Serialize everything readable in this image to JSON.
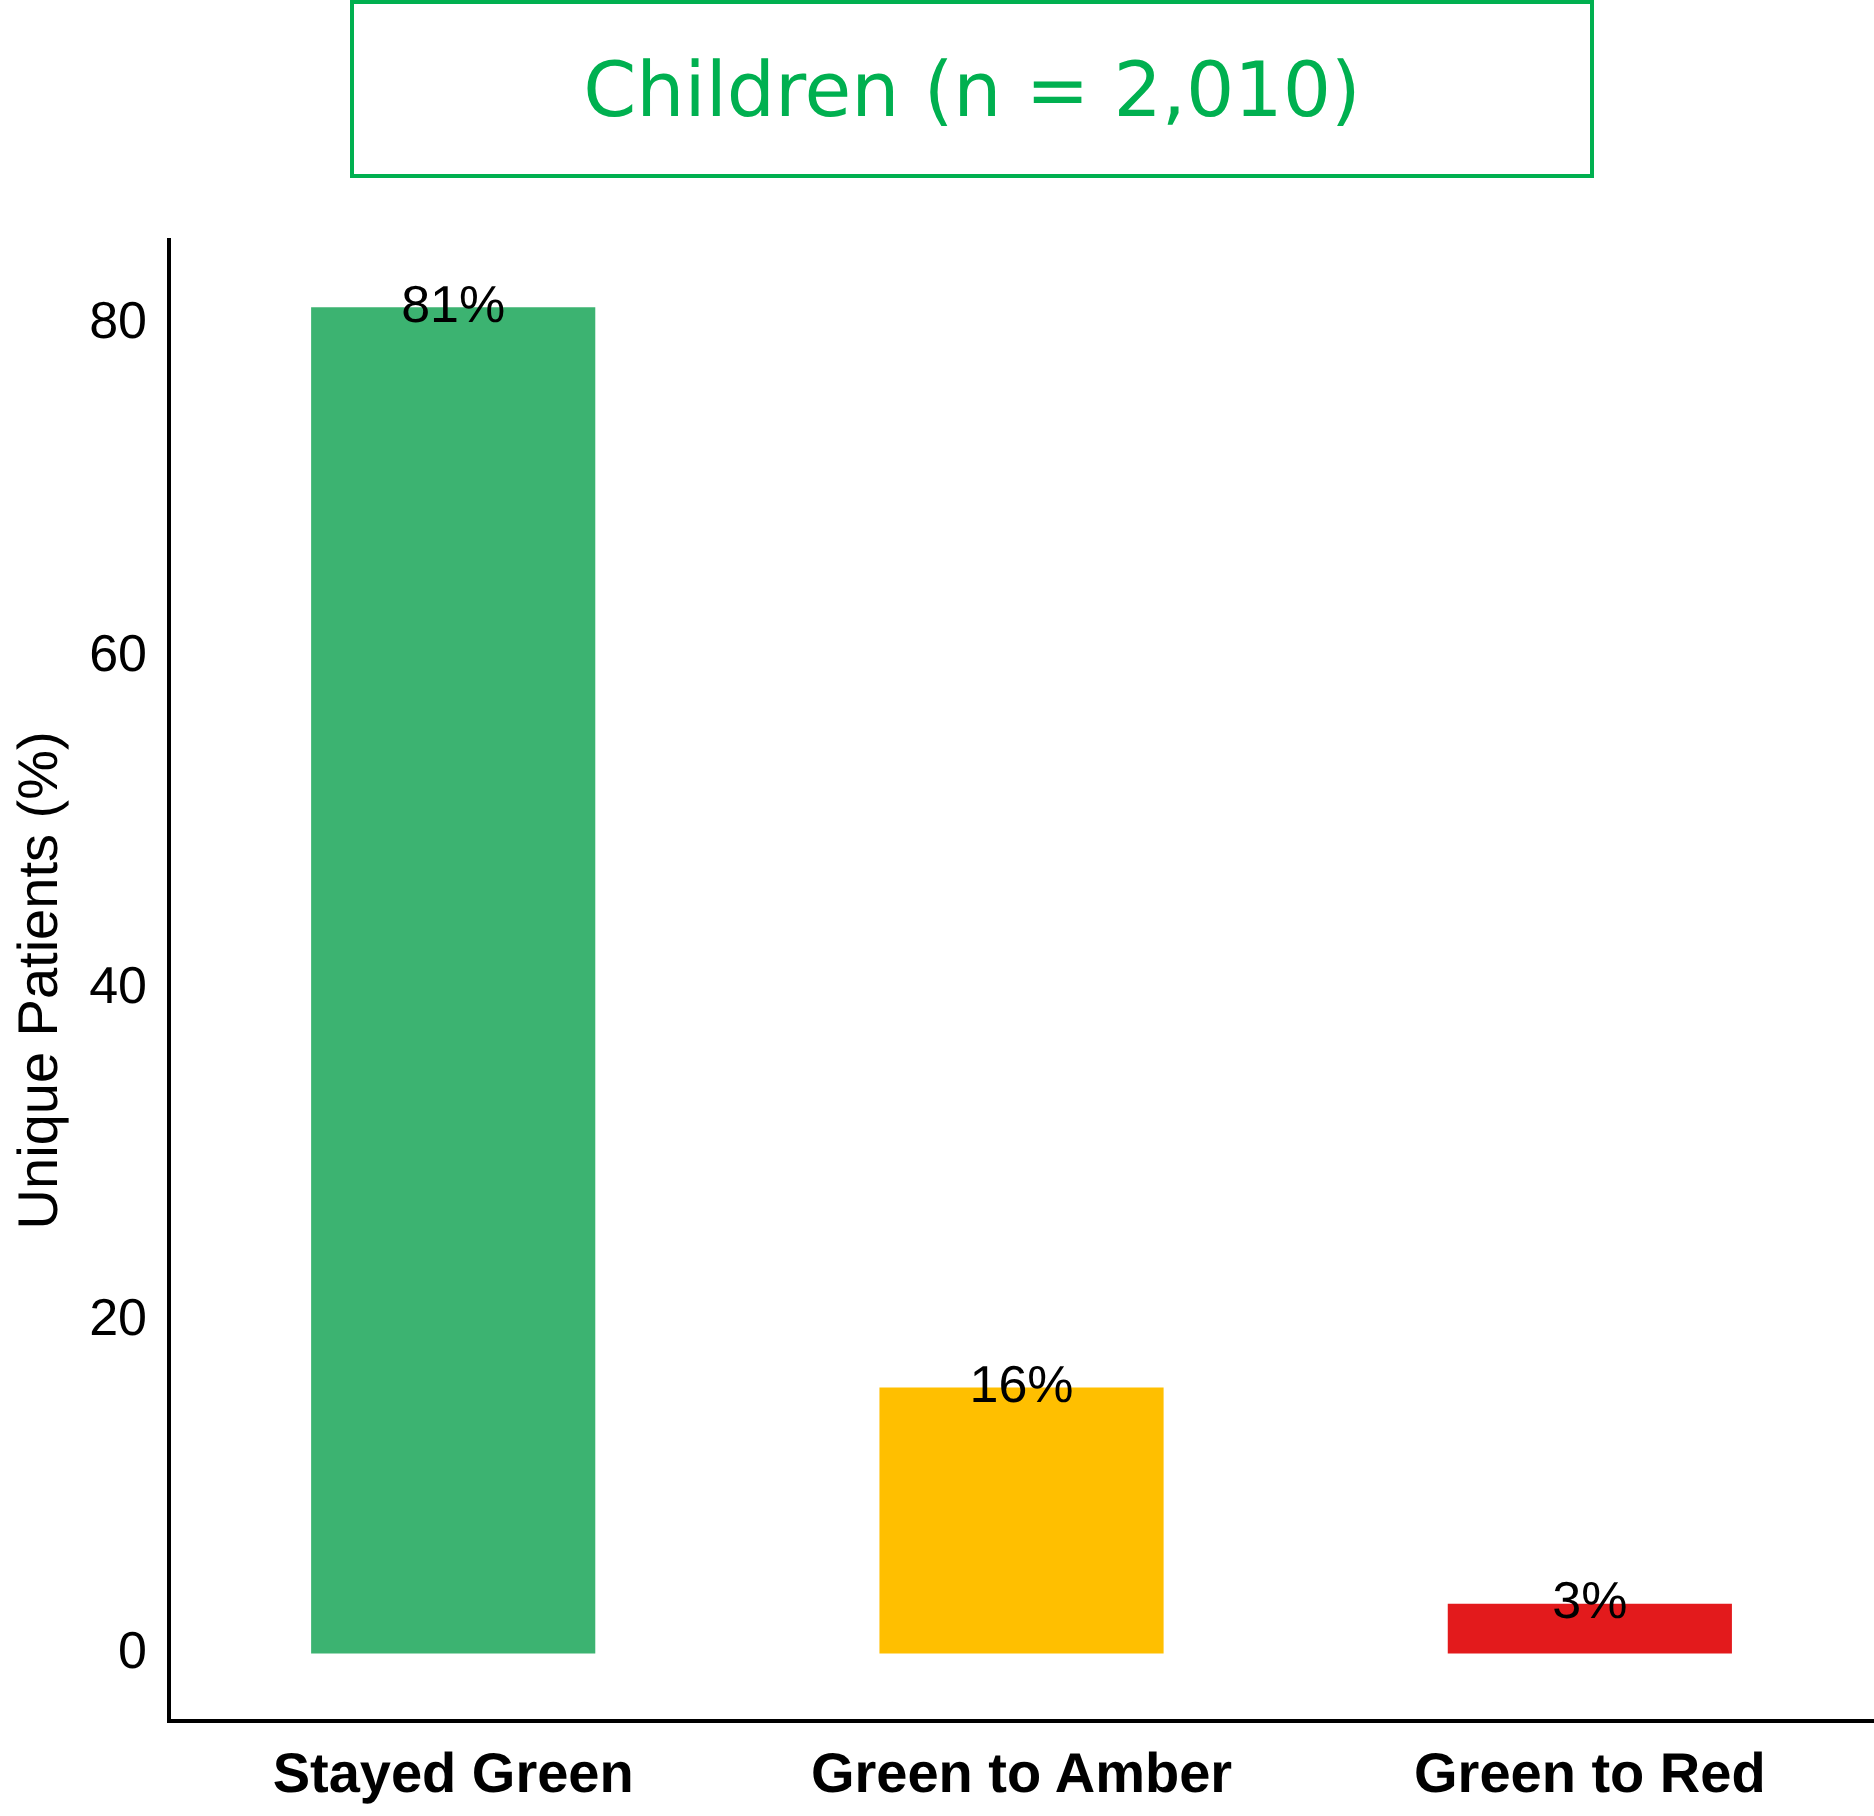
{
  "chart_data": {
    "type": "bar",
    "title": "Children (n = 2,010)",
    "ylabel": "Unique Patients (%)",
    "categories": [
      "Stayed Green",
      "Green to Amber",
      "Green to Red"
    ],
    "values": [
      81,
      16,
      3
    ],
    "colors": [
      "#3cb371",
      "#ffbf00",
      "#e31a1c"
    ],
    "value_labels": [
      "81%",
      "16%",
      "3%"
    ],
    "ylim": [
      -4.05,
      85.05
    ],
    "yticks": [
      0,
      20,
      40,
      60,
      80
    ],
    "grid": false,
    "legend": false
  }
}
